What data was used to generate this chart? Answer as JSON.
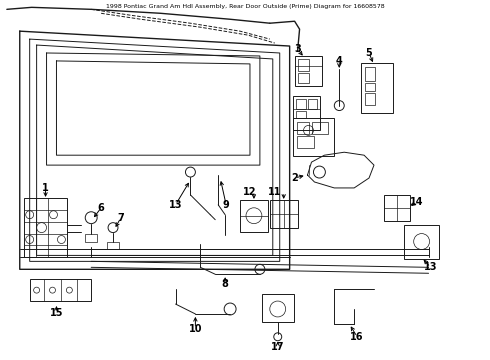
{
  "title": "1998 Pontiac Grand Am Hdl Assembly, Rear Door Outside (Prime) Diagram for 16608578",
  "bg_color": "#ffffff",
  "line_color": "#1a1a1a",
  "fig_width": 4.9,
  "fig_height": 3.6,
  "dpi": 100
}
